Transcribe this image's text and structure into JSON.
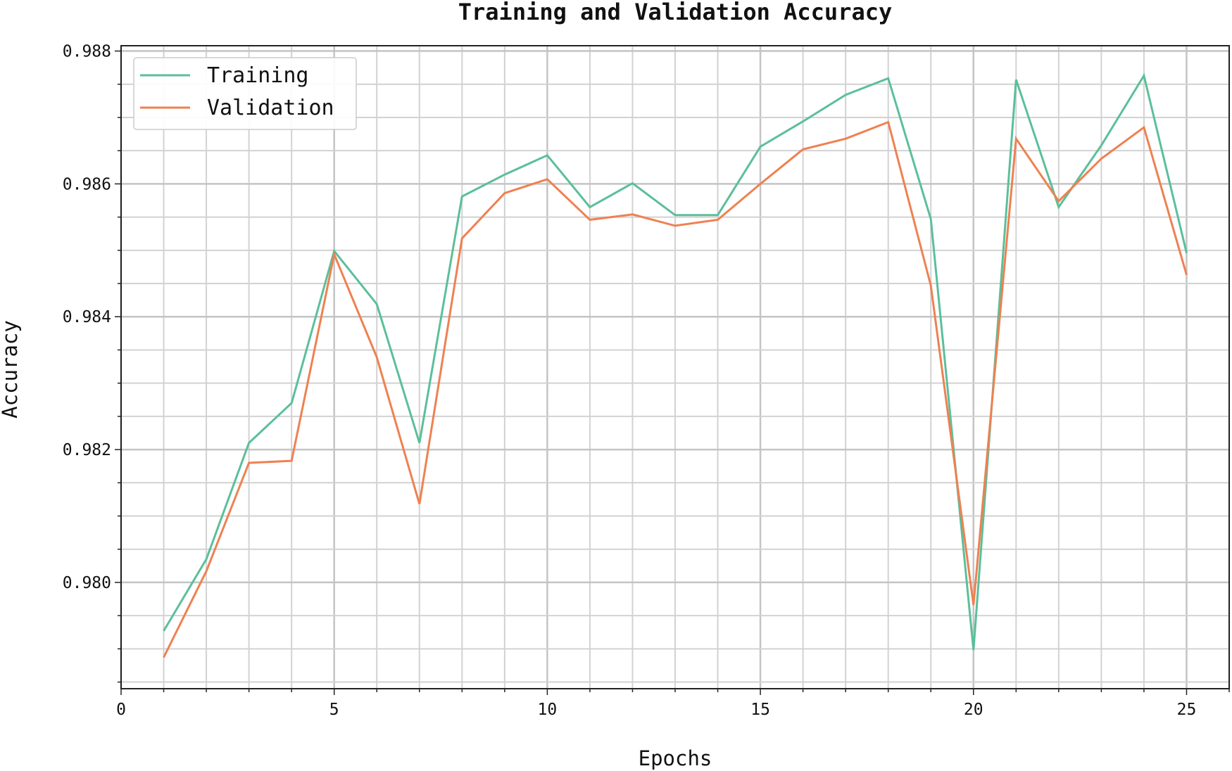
{
  "chart_data": {
    "type": "line",
    "title": "Training and Validation Accuracy",
    "xlabel": "Epochs",
    "ylabel": "Accuracy",
    "xlim": [
      0,
      26
    ],
    "ylim": [
      0.9784,
      0.98808
    ],
    "grid": true,
    "legend_position": "top-left",
    "x_ticks": [
      0,
      5,
      10,
      15,
      20,
      25
    ],
    "y_ticks": [
      0.98,
      0.982,
      0.984,
      0.986,
      0.988
    ],
    "x_tick_labels": [
      "0",
      "5",
      "10",
      "15",
      "20",
      "25"
    ],
    "y_tick_labels": [
      "0.980",
      "0.982",
      "0.984",
      "0.986",
      "0.988"
    ],
    "x": [
      1,
      2,
      3,
      4,
      5,
      6,
      7,
      8,
      9,
      10,
      11,
      12,
      13,
      14,
      15,
      16,
      17,
      18,
      19,
      20,
      21,
      22,
      23,
      24,
      25
    ],
    "series": [
      {
        "name": "Training",
        "color": "#5bbf9a",
        "values": [
          0.97927,
          0.98035,
          0.9821,
          0.9827,
          0.98499,
          0.98419,
          0.9821,
          0.98581,
          0.98614,
          0.98643,
          0.98565,
          0.98601,
          0.98553,
          0.98553,
          0.98656,
          0.98694,
          0.98734,
          0.98759,
          0.98547,
          0.97898,
          0.98757,
          0.98565,
          0.98658,
          0.98763,
          0.98496
        ]
      },
      {
        "name": "Validation",
        "color": "#ee8152",
        "values": [
          0.97887,
          0.98017,
          0.9818,
          0.98183,
          0.98494,
          0.98339,
          0.98118,
          0.98518,
          0.98586,
          0.98607,
          0.98546,
          0.98554,
          0.98537,
          0.98546,
          0.986,
          0.98652,
          0.98668,
          0.98693,
          0.98447,
          0.97966,
          0.98668,
          0.98574,
          0.98638,
          0.98685,
          0.98463
        ]
      }
    ]
  }
}
